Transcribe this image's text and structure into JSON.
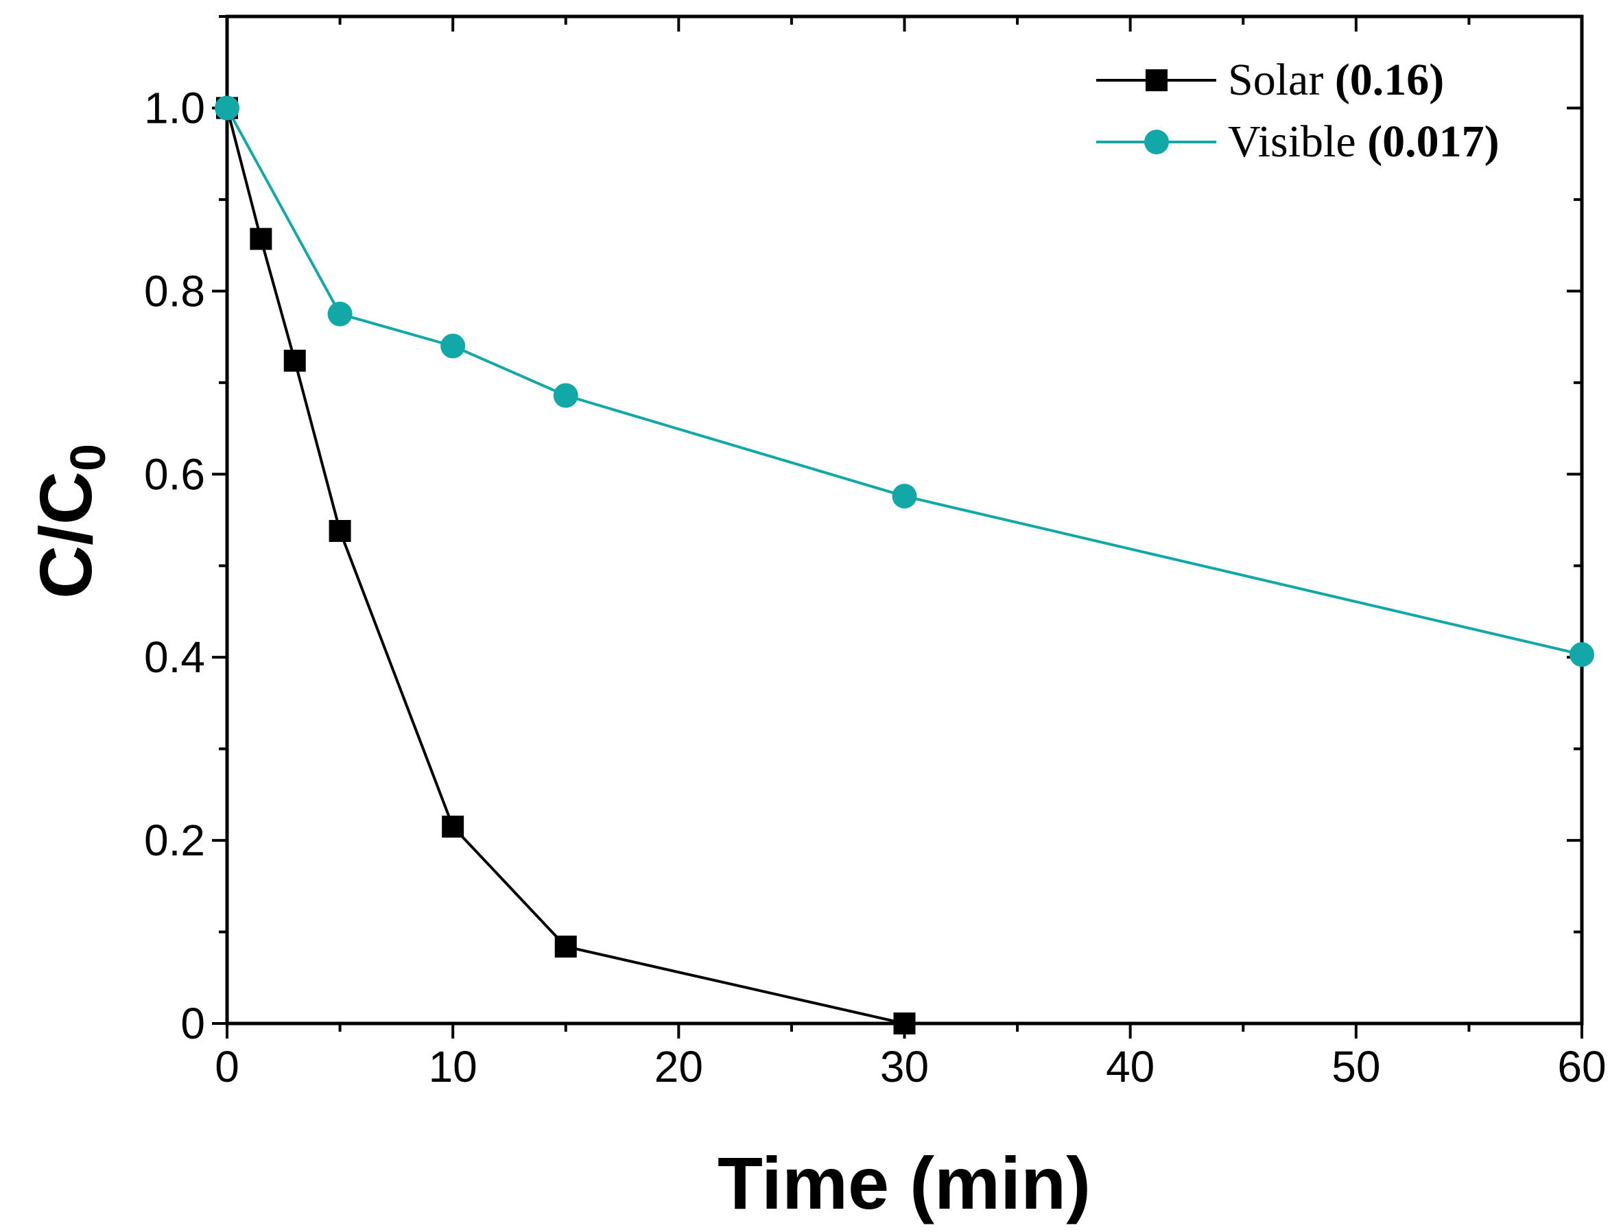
{
  "chart_data": {
    "type": "line",
    "xlabel": "Time (min)",
    "ylabel": {
      "main": "C/C",
      "subscript": "0"
    },
    "xlim": [
      0,
      60
    ],
    "ylim": [
      0,
      1.1
    ],
    "xticks": [
      0,
      10,
      20,
      30,
      40,
      50,
      60
    ],
    "xtick_labels": [
      "0",
      "10",
      "20",
      "30",
      "40",
      "50",
      "60"
    ],
    "yticks": [
      0,
      0.2,
      0.4,
      0.6,
      0.8,
      1.0
    ],
    "ytick_labels": [
      "0",
      "0.2",
      "0.4",
      "0.6",
      "0.8",
      "1.0"
    ],
    "grid": false,
    "legend_position": "top-right",
    "series": [
      {
        "name": "Solar",
        "rate": "(0.16)",
        "marker": "square",
        "color": "#000000",
        "x": [
          0,
          1.5,
          3,
          5,
          10,
          15,
          30
        ],
        "y": [
          1.0,
          0.857,
          0.724,
          0.538,
          0.215,
          0.084,
          0.0
        ]
      },
      {
        "name": "Visible",
        "rate": "(0.017)",
        "marker": "circle",
        "color": "#12A8A8",
        "x": [
          0,
          5,
          10,
          15,
          30,
          60
        ],
        "y": [
          1.0,
          0.775,
          0.74,
          0.686,
          0.576,
          0.403
        ]
      }
    ]
  }
}
